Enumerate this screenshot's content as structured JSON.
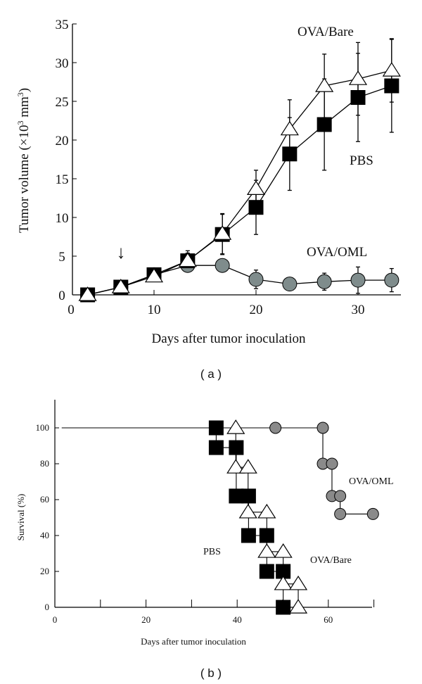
{
  "chart_data": [
    {
      "panel_label": "( a )",
      "type": "line",
      "xlabel": "Days after tumor inoculation",
      "ylabel": "Tumor volume (×10",
      "ylabel_sup": "3",
      "ylabel_end": " mm",
      "ylabel_sup2": "3",
      "ylabel_close": ")",
      "xlim": [
        0,
        34
      ],
      "ylim": [
        0,
        35
      ],
      "xticks": [
        0,
        10,
        20,
        30
      ],
      "yticks": [
        0,
        5,
        10,
        15,
        20,
        25,
        30,
        35
      ],
      "annotation": {
        "symbol": "↓",
        "x": 6
      },
      "x": [
        2,
        6,
        10,
        13.3,
        16.7,
        20,
        23.3,
        26.7,
        30,
        33.3
      ],
      "series": [
        {
          "name": "OVA/OML",
          "marker": "circle",
          "color": "#7f8c8c",
          "values": [
            0,
            1,
            2.6,
            3.8,
            3.8,
            2.0,
            1.4,
            1.7,
            1.9,
            1.9
          ],
          "errors": [
            0,
            0,
            0,
            0.4,
            0,
            1.2,
            0,
            1.1,
            1.7,
            1.5
          ]
        },
        {
          "name": "PBS",
          "marker": "square",
          "color": "#000000",
          "values": [
            0,
            1,
            2.6,
            4.4,
            7.8,
            11.3,
            18.2,
            22.0,
            25.5,
            27.0
          ],
          "errors": [
            0,
            0,
            0.5,
            1.0,
            2.6,
            3.5,
            4.7,
            5.9,
            5.7,
            6.0
          ]
        },
        {
          "name": "OVA/Bare",
          "marker": "triangle",
          "color": "#ffffff",
          "values": [
            0,
            1,
            2.4,
            4.4,
            7.9,
            13.7,
            21.4,
            27.0,
            27.9,
            29.0
          ],
          "errors": [
            0,
            0,
            0.5,
            1.3,
            2.6,
            2.4,
            3.8,
            4.1,
            4.7,
            4.1
          ]
        }
      ]
    },
    {
      "panel_label": "( b )",
      "type": "line",
      "subtype": "kaplan-meier",
      "xlabel": "Days after tumor inoculation",
      "ylabel": "Survival (%)",
      "xlim": [
        0,
        70
      ],
      "ylim": [
        0,
        115
      ],
      "xticks": [
        0,
        10,
        20,
        30,
        40,
        50,
        60,
        70
      ],
      "xticklabels": [
        "0",
        "",
        "20",
        "",
        "40",
        "",
        "60",
        ""
      ],
      "yticks": [
        0,
        20,
        40,
        60,
        80,
        100
      ],
      "series": [
        {
          "name": "OVA/OML",
          "marker": "circle",
          "color": "#8a8a8a",
          "points": [
            [
              1.5,
              100
            ],
            [
              48.4,
              100
            ],
            [
              58.8,
              100
            ],
            [
              58.8,
              80
            ],
            [
              60.8,
              80
            ],
            [
              60.8,
              62
            ],
            [
              62.6,
              62
            ],
            [
              62.6,
              52
            ],
            [
              69.8,
              52
            ]
          ],
          "marked": [
            false,
            true,
            true,
            true,
            true,
            true,
            true,
            true,
            true
          ]
        },
        {
          "name": "PBS",
          "marker": "square",
          "color": "#000000",
          "points": [
            [
              35.4,
              100
            ],
            [
              35.4,
              89
            ],
            [
              39.8,
              89
            ],
            [
              39.8,
              62
            ],
            [
              42.5,
              62
            ],
            [
              42.5,
              40
            ],
            [
              46.5,
              40
            ],
            [
              46.5,
              20
            ],
            [
              50.1,
              20
            ],
            [
              50.1,
              0
            ]
          ]
        },
        {
          "name": "OVA/Bare",
          "marker": "triangle",
          "color": "#ffffff",
          "points": [
            [
              39.7,
              100
            ],
            [
              39.7,
              78
            ],
            [
              42.4,
              78
            ],
            [
              42.4,
              53
            ],
            [
              46.5,
              53
            ],
            [
              46.5,
              31
            ],
            [
              50.1,
              31
            ],
            [
              50.1,
              13
            ],
            [
              53.4,
              13
            ],
            [
              53.4,
              0
            ]
          ]
        }
      ]
    }
  ]
}
